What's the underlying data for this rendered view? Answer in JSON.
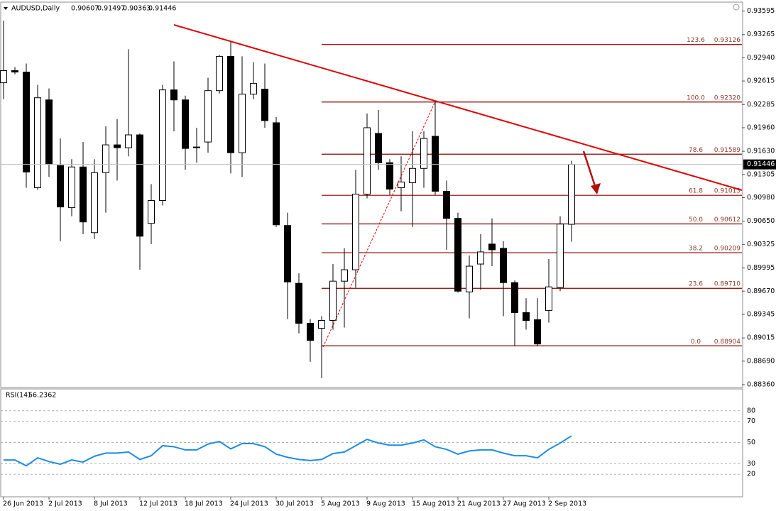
{
  "chart_data": [
    {
      "type": "candlestick",
      "title": "AUDUSD,Daily",
      "categories": [
        "26 Jun 2013",
        null,
        null,
        null,
        "2 Jul 2013",
        null,
        null,
        null,
        "8 Jul 2013",
        null,
        null,
        null,
        "12 Jul 2013",
        null,
        null,
        null,
        "18 Jul 2013",
        null,
        null,
        null,
        "24 Jul 2013",
        null,
        null,
        null,
        "30 Jul 2013",
        null,
        null,
        null,
        "5 Aug 2013",
        null,
        null,
        null,
        "9 Aug 2013",
        null,
        null,
        null,
        "15 Aug 2013",
        null,
        null,
        null,
        "21 Aug 2013",
        null,
        null,
        null,
        "27 Aug 2013",
        null,
        null,
        null,
        "2 Sep 2013",
        null,
        null
      ],
      "open": [
        0.9259,
        0.9276,
        0.9274,
        0.9112,
        0.9235,
        0.9143,
        0.9084,
        0.9141,
        0.9049,
        0.9133,
        0.9172,
        0.9168,
        0.9186,
        0.9062,
        0.9094,
        0.9249,
        0.9235,
        0.9169,
        0.9176,
        0.9248,
        0.9296,
        0.9161,
        0.9243,
        0.925,
        0.9203,
        0.9059,
        0.8978,
        0.8922,
        0.8915,
        0.8926,
        0.8981,
        0.8997,
        0.9103,
        0.9188,
        0.9147,
        0.9112,
        0.9119,
        0.9139,
        0.9184,
        0.9107,
        0.9069,
        0.8966,
        0.9005,
        0.9033,
        0.9027,
        0.8979,
        0.8937,
        0.8927,
        0.894,
        0.8972,
        0.90607
      ],
      "high": [
        0.9346,
        0.9281,
        0.9286,
        0.9256,
        0.9251,
        0.9181,
        0.9152,
        0.9176,
        0.9152,
        0.9198,
        0.9208,
        0.9306,
        0.9188,
        0.9117,
        0.9256,
        0.9289,
        0.9241,
        0.9196,
        0.9266,
        0.9298,
        0.9318,
        0.9296,
        0.9288,
        0.9286,
        0.9211,
        0.9077,
        0.8992,
        0.8928,
        0.8932,
        0.9005,
        0.9027,
        0.9137,
        0.9216,
        0.9221,
        0.9152,
        0.9156,
        0.9191,
        0.9191,
        0.9232,
        0.9122,
        0.9077,
        0.9017,
        0.9047,
        0.9069,
        0.9037,
        0.8982,
        0.8957,
        0.8957,
        0.9012,
        0.9072,
        0.91497
      ],
      "low": [
        0.9236,
        0.9271,
        0.9112,
        0.9109,
        0.9127,
        0.9037,
        0.9072,
        0.9047,
        0.904,
        0.9077,
        0.9122,
        0.9156,
        0.8997,
        0.9033,
        0.9087,
        0.9191,
        0.9137,
        0.9147,
        0.9161,
        0.9244,
        0.9132,
        0.9127,
        0.9236,
        0.9196,
        0.9057,
        0.8928,
        0.8908,
        0.8868,
        0.8845,
        0.8913,
        0.8916,
        0.8972,
        0.9097,
        0.9137,
        0.9102,
        0.9079,
        0.9057,
        0.9112,
        0.9102,
        0.9025,
        0.8965,
        0.8929,
        0.8969,
        0.9002,
        0.8932,
        0.889,
        0.8913,
        0.889,
        0.8923,
        0.8967,
        0.90363
      ],
      "close": [
        0.9276,
        0.9274,
        0.9134,
        0.9238,
        0.9145,
        0.9085,
        0.9141,
        0.9064,
        0.9133,
        0.9172,
        0.9168,
        0.9186,
        0.9044,
        0.9094,
        0.9249,
        0.9235,
        0.9167,
        0.9168,
        0.9248,
        0.9296,
        0.9161,
        0.9243,
        0.9258,
        0.9206,
        0.906,
        0.898,
        0.8922,
        0.8898,
        0.8926,
        0.8981,
        0.8997,
        0.9103,
        0.9196,
        0.9147,
        0.911,
        0.912,
        0.9139,
        0.9181,
        0.9107,
        0.9069,
        0.8967,
        0.9002,
        0.9022,
        0.9025,
        0.8979,
        0.8937,
        0.8926,
        0.8893,
        0.8973,
        0.9061,
        0.91446
      ],
      "up_color": "#ffffff",
      "down_color": "#000000",
      "ylim": [
        0.8833,
        0.937
      ],
      "yticks": [
        0.93595,
        0.93265,
        {
          "value": 0.9294,
          "label": "0.92940"
        },
        0.92615,
        0.92285,
        {
          "value": 0.9196,
          "label": "0.91960"
        },
        {
          "value": 0.9163,
          "label": "0.91630"
        },
        0.91305,
        {
          "value": 0.9098,
          "label": "0.90980"
        },
        {
          "value": 0.9065,
          "label": "0.90650"
        },
        0.90325,
        0.89995,
        {
          "value": 0.8967,
          "label": "0.89670"
        },
        0.89345,
        0.89015,
        {
          "value": 0.8869,
          "label": "0.88690"
        },
        {
          "value": 0.8836,
          "label": "0.88360"
        }
      ],
      "fib_color": "#8b0000",
      "fib_levels": [
        {
          "level": 123.6,
          "price": 0.93126
        },
        {
          "level": {
            "value": 100,
            "label": "100.0"
          },
          "price": {
            "value": 0.9232,
            "label": "0.92320"
          }
        },
        {
          "level": 78.6,
          "price": 0.91589
        },
        {
          "level": 61.8,
          "price": 0.91013
        },
        {
          "level": {
            "value": 50,
            "label": "50.0"
          },
          "price": 0.90612
        },
        {
          "level": 38.2,
          "price": 0.90209
        },
        {
          "level": 23.6,
          "price": {
            "value": 0.8971,
            "label": "0.89710"
          }
        },
        {
          "level": {
            "value": 0,
            "label": "0.0"
          },
          "price": 0.88904
        }
      ]
    },
    {
      "type": "line",
      "title": "RSI(14)",
      "color": "#1e8ce6",
      "values": [
        33.5,
        33.5,
        28,
        35.5,
        32,
        29.5,
        33.5,
        31.5,
        37,
        40,
        40,
        41,
        34,
        37.5,
        47,
        46,
        43,
        43,
        48.5,
        51,
        44,
        49,
        49,
        46,
        39,
        36,
        34,
        33,
        34,
        39.5,
        41,
        47,
        53,
        49.5,
        47.5,
        47.5,
        49.5,
        52.5,
        46,
        43.5,
        39,
        42,
        43,
        43,
        40,
        37.5,
        37.5,
        35.5,
        43.5,
        49.5,
        56.2362
      ],
      "ylim": [
        0,
        100
      ],
      "yticks": [
        80,
        70,
        50,
        30,
        20
      ],
      "grid": true
    }
  ]
}
